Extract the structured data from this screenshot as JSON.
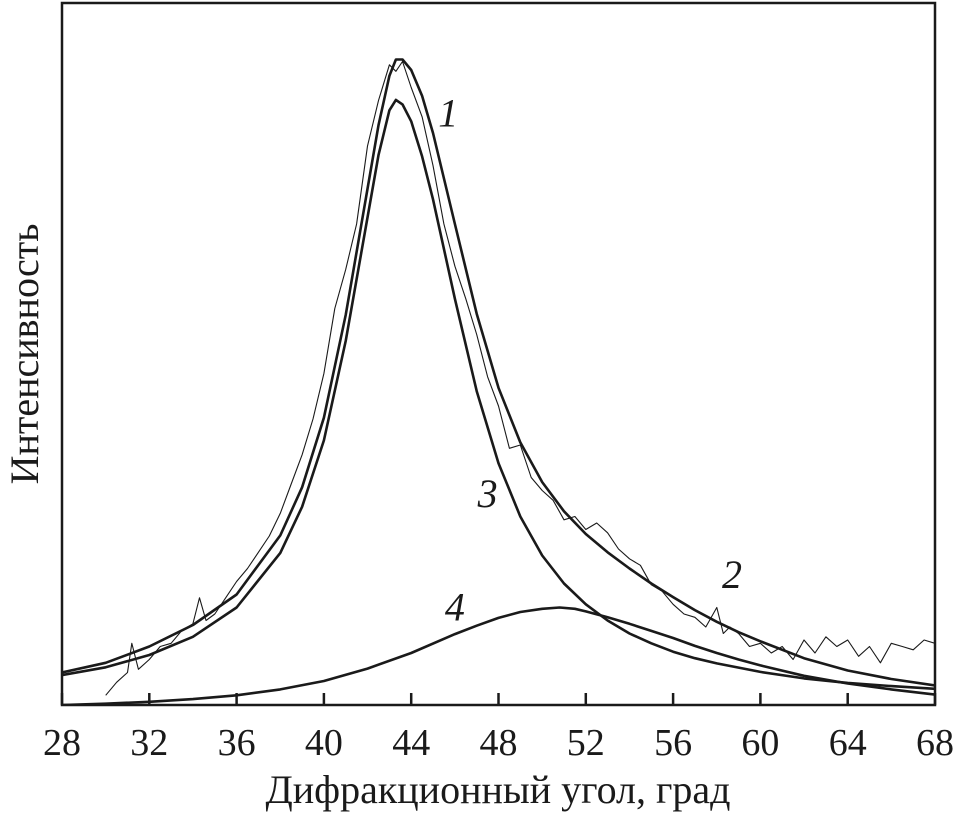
{
  "chart_data": {
    "type": "line",
    "xlabel": "Дифракционный угол, град",
    "ylabel": "Интенсивность",
    "xlim": [
      28,
      68
    ],
    "ylim": [
      0,
      100
    ],
    "x_ticks": [
      "28",
      "32",
      "36",
      "40",
      "44",
      "48",
      "52",
      "56",
      "60",
      "64",
      "68"
    ],
    "y_ticks": [],
    "grid": false,
    "legend": "none",
    "series": [
      {
        "name": "1",
        "x": [
          30.0,
          30.5,
          31.0,
          31.2,
          31.5,
          32.0,
          32.5,
          33.0,
          33.5,
          34.0,
          34.3,
          34.6,
          35.0,
          35.5,
          36.0,
          36.5,
          37.0,
          37.5,
          38.0,
          38.5,
          39.0,
          39.5,
          40.0,
          40.5,
          41.0,
          41.5,
          42.0,
          42.5,
          43.0,
          43.3,
          43.6,
          44.0,
          44.5,
          45.0,
          45.5,
          46.0,
          46.5,
          47.0,
          47.5,
          48.0,
          48.5,
          49.0,
          49.5,
          50.0,
          50.5,
          51.0,
          51.5,
          52.0,
          52.5,
          53.0,
          53.5,
          54.0,
          54.5,
          55.0,
          55.5,
          56.0,
          56.5,
          57.0,
          57.5,
          58.0,
          58.3,
          58.6,
          59.0,
          59.5,
          60.0,
          60.5,
          61.0,
          61.5,
          62.0,
          62.5,
          63.0,
          63.5,
          64.0,
          64.5,
          65.0,
          65.5,
          66.0,
          66.5,
          67.0,
          67.5,
          68.0
        ],
        "y": [
          1.5,
          3.5,
          5.0,
          9.5,
          5.5,
          7.0,
          9.0,
          9.5,
          11.5,
          12.5,
          16.5,
          13.0,
          14.0,
          16.5,
          19.0,
          21.0,
          23.5,
          26.0,
          29.5,
          34.0,
          38.5,
          44.0,
          51.0,
          61.0,
          67.0,
          74.0,
          86.0,
          93.0,
          98.5,
          97.5,
          99.0,
          95.0,
          90.5,
          83.0,
          74.0,
          67.5,
          62.5,
          57.0,
          50.5,
          46.0,
          39.5,
          40.0,
          35.0,
          33.0,
          31.5,
          28.5,
          29.0,
          27.0,
          28.0,
          26.5,
          24.0,
          22.5,
          21.5,
          18.5,
          17.5,
          15.5,
          14.0,
          13.5,
          12.0,
          15.0,
          11.0,
          12.0,
          11.0,
          9.0,
          9.5,
          8.0,
          9.0,
          7.0,
          10.0,
          8.0,
          10.5,
          9.0,
          10.0,
          7.5,
          9.0,
          6.5,
          9.5,
          9.0,
          8.5,
          10.0,
          9.5
        ]
      },
      {
        "name": "2",
        "x": [
          28,
          30,
          32,
          34,
          36,
          38,
          39,
          40,
          41,
          42,
          42.5,
          43,
          43.3,
          43.6,
          44,
          44.5,
          45,
          46,
          47,
          48,
          49,
          50,
          51,
          52,
          53,
          54,
          55,
          56,
          57,
          58,
          59,
          60,
          62,
          64,
          66,
          68
        ],
        "y": [
          5.0,
          6.5,
          9.0,
          12.3,
          17.0,
          26.1,
          33.5,
          44.2,
          60.0,
          79.4,
          89.2,
          96.8,
          99.3,
          99.3,
          97.7,
          93.7,
          88.0,
          74.0,
          60.2,
          48.8,
          40.4,
          34.3,
          29.8,
          26.3,
          23.5,
          21.0,
          18.7,
          16.6,
          14.6,
          12.8,
          11.2,
          9.8,
          7.2,
          5.3,
          4.0,
          3.0
        ]
      },
      {
        "name": "3",
        "x": [
          28,
          30,
          32,
          34,
          36,
          38,
          39,
          40,
          41,
          42,
          42.5,
          43,
          43.3,
          43.6,
          44,
          44.5,
          45,
          46,
          47,
          48,
          49,
          50,
          51,
          52,
          53,
          54,
          55,
          56,
          57,
          58,
          60,
          62,
          64,
          66,
          68
        ],
        "y": [
          4.6,
          5.8,
          7.7,
          10.5,
          15.0,
          23.4,
          30.5,
          40.7,
          56.0,
          75.0,
          84.6,
          91.5,
          93.1,
          92.4,
          89.8,
          84.4,
          77.8,
          62.5,
          48.3,
          37.2,
          29.0,
          23.0,
          18.7,
          15.5,
          13.0,
          11.0,
          9.5,
          8.2,
          7.2,
          6.4,
          5.1,
          4.1,
          3.4,
          2.9,
          2.5
        ]
      },
      {
        "name": "4",
        "x": [
          28,
          30,
          32,
          34,
          36,
          38,
          40,
          42,
          44,
          46,
          47,
          48,
          49,
          50,
          50.8,
          51.5,
          52,
          53,
          54,
          55,
          56,
          57,
          58,
          59,
          60,
          62,
          64,
          66,
          68
        ],
        "y": [
          0.0,
          0.2,
          0.5,
          0.9,
          1.5,
          2.4,
          3.7,
          5.6,
          8.0,
          10.9,
          12.2,
          13.4,
          14.3,
          14.8,
          15.0,
          14.8,
          14.4,
          13.5,
          12.5,
          11.4,
          10.3,
          9.1,
          8.0,
          7.0,
          6.1,
          4.5,
          3.3,
          2.4,
          1.6
        ]
      }
    ]
  }
}
